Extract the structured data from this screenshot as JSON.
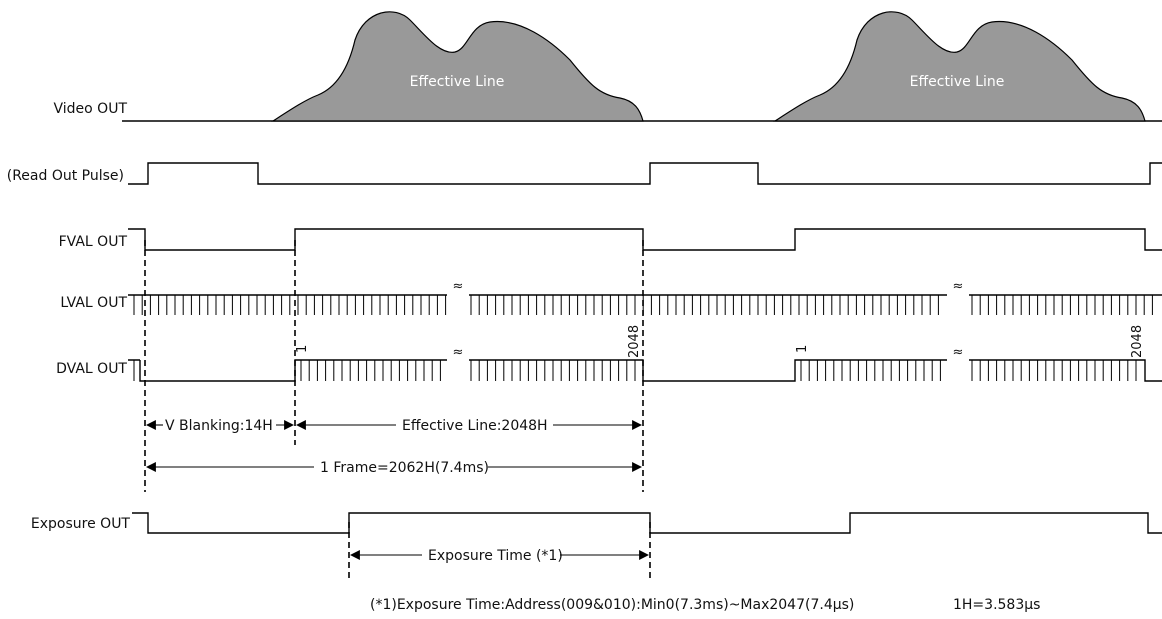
{
  "signals": {
    "video_out": "Video OUT",
    "read_out_pulse": "(Read Out Pulse)",
    "fval_out": "FVAL OUT",
    "lval_out": "LVAL OUT",
    "dval_out": "DVAL OUT",
    "exposure_out": "Exposure OUT"
  },
  "video": {
    "hump_label_1": "Effective Line",
    "hump_label_2": "Effective Line",
    "fill_color": "#999999"
  },
  "markers": {
    "break_symbol": "≈",
    "line_first": "1",
    "line_last": "2048",
    "line_first_2": "1",
    "line_last_2": "2048"
  },
  "annotations": {
    "v_blanking": "V Blanking:14H",
    "effective_line": "Effective Line:2048H",
    "frame": "1 Frame=2062H(7.4ms)",
    "exposure_time": "Exposure Time (*1)"
  },
  "footnote": {
    "exposure_note": "(*1)Exposure Time:Address(009&010):Min0(7.3ms)~Max2047(7.4μs)",
    "h_definition": "1H=3.583μs"
  }
}
